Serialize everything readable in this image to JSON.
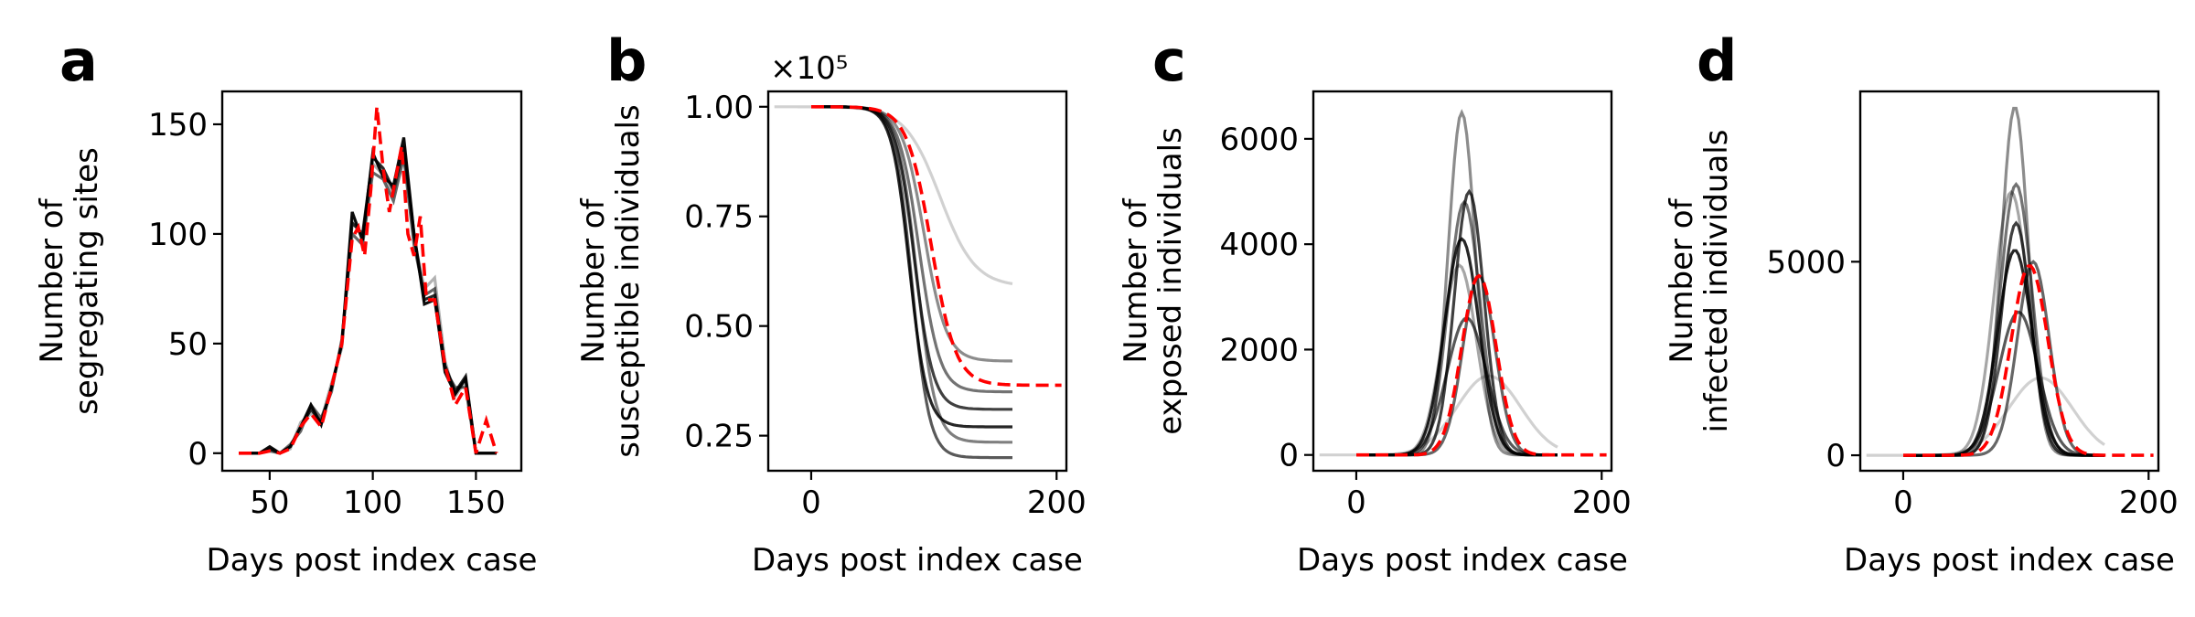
{
  "figure": {
    "xlabel": "Days post index case"
  },
  "chart_data": [
    {
      "panel": "a",
      "type": "line",
      "title": "",
      "xlabel": "Days post index case",
      "ylabel": [
        "Number of",
        "segregating sites"
      ],
      "xlim": [
        27,
        172
      ],
      "ylim": [
        -8,
        165
      ],
      "xticks": [
        50,
        100,
        150
      ],
      "yticks": [
        0,
        50,
        100,
        150
      ],
      "y_offset_label": "",
      "series_gray": [
        {
          "alpha": 0.85,
          "x": [
            35,
            45,
            50,
            55,
            60,
            65,
            70,
            75,
            80,
            85,
            90,
            95,
            100,
            105,
            110,
            115,
            120,
            125,
            130,
            135,
            140,
            145,
            150,
            155,
            160
          ],
          "y": [
            0,
            0,
            2,
            0,
            3,
            12,
            20,
            14,
            30,
            50,
            105,
            100,
            135,
            130,
            120,
            140,
            100,
            70,
            72,
            40,
            28,
            35,
            0,
            0,
            0
          ]
        },
        {
          "alpha": 0.6,
          "x": [
            35,
            45,
            50,
            55,
            60,
            65,
            70,
            75,
            80,
            85,
            90,
            95,
            100,
            105,
            110,
            115,
            120,
            125,
            130,
            135,
            140,
            145,
            150,
            155,
            160
          ],
          "y": [
            0,
            0,
            1,
            0,
            4,
            10,
            22,
            16,
            28,
            52,
            100,
            95,
            128,
            125,
            115,
            135,
            95,
            72,
            75,
            38,
            30,
            30,
            0,
            0,
            0
          ]
        },
        {
          "alpha": 0.3,
          "x": [
            35,
            45,
            50,
            55,
            60,
            65,
            70,
            75,
            80,
            85,
            90,
            95,
            100,
            105,
            110,
            115,
            120,
            125,
            130,
            135,
            140,
            145,
            150,
            155,
            160
          ],
          "y": [
            0,
            0,
            2,
            0,
            2,
            14,
            18,
            15,
            32,
            48,
            108,
            98,
            132,
            127,
            118,
            138,
            98,
            75,
            80,
            42,
            26,
            33,
            0,
            0,
            0
          ]
        },
        {
          "alpha": 0.95,
          "x": [
            35,
            45,
            50,
            55,
            60,
            65,
            70,
            75,
            80,
            85,
            90,
            95,
            100,
            105,
            110,
            115,
            120,
            125,
            130,
            135,
            140,
            145,
            150,
            155,
            160
          ],
          "y": [
            0,
            0,
            3,
            0,
            3,
            12,
            22,
            13,
            30,
            50,
            110,
            97,
            137,
            126,
            122,
            144,
            100,
            68,
            70,
            37,
            27,
            34,
            0,
            0,
            0
          ]
        }
      ],
      "series_red": {
        "x": [
          35,
          45,
          50,
          55,
          60,
          65,
          70,
          75,
          80,
          85,
          90,
          93,
          96,
          99,
          102,
          105,
          108,
          111,
          114,
          117,
          120,
          123,
          126,
          130,
          135,
          140,
          145,
          150,
          155,
          160
        ],
        "y": [
          0,
          0,
          1,
          0,
          2,
          12,
          18,
          12,
          30,
          50,
          98,
          103,
          90,
          120,
          158,
          130,
          110,
          125,
          140,
          100,
          90,
          108,
          70,
          70,
          40,
          22,
          30,
          0,
          15,
          0
        ]
      }
    },
    {
      "panel": "b",
      "type": "line",
      "title": "",
      "xlabel": "Days post index case",
      "ylabel": [
        "Number of",
        "susceptible individuals"
      ],
      "xlim": [
        -35,
        208
      ],
      "ylim": [
        0.17,
        1.035
      ],
      "xticks": [
        0,
        200
      ],
      "yticks": [
        0.25,
        0.5,
        0.75,
        1.0
      ],
      "ytick_labels": [
        "0.25",
        "0.50",
        "0.75",
        "1.00"
      ],
      "y_offset_label": "×10⁵",
      "sigmoid_series": [
        {
          "alpha": 0.18,
          "start": -30,
          "end": 165,
          "final": 0.59,
          "mid": 105,
          "k": 0.07
        },
        {
          "alpha": 0.45,
          "start": 0,
          "end": 165,
          "final": 0.42,
          "mid": 92,
          "k": 0.11
        },
        {
          "alpha": 0.55,
          "start": 0,
          "end": 165,
          "final": 0.35,
          "mid": 88,
          "k": 0.12
        },
        {
          "alpha": 0.75,
          "start": 0,
          "end": 165,
          "final": 0.31,
          "mid": 84,
          "k": 0.13
        },
        {
          "alpha": 0.85,
          "start": 0,
          "end": 165,
          "final": 0.27,
          "mid": 80,
          "k": 0.14
        },
        {
          "alpha": 0.5,
          "start": 0,
          "end": 165,
          "final": 0.235,
          "mid": 86,
          "k": 0.13
        },
        {
          "alpha": 0.65,
          "start": 0,
          "end": 165,
          "final": 0.2,
          "mid": 82,
          "k": 0.14
        }
      ],
      "red_sigmoid": {
        "start": 0,
        "end": 205,
        "final": 0.365,
        "mid": 98,
        "k": 0.1
      }
    },
    {
      "panel": "c",
      "type": "line",
      "title": "",
      "xlabel": "Days post index case",
      "ylabel": [
        "Number of",
        "exposed individuals"
      ],
      "xlim": [
        -35,
        208
      ],
      "ylim": [
        -300,
        6900
      ],
      "xticks": [
        0,
        200
      ],
      "yticks": [
        0,
        2000,
        4000,
        6000
      ],
      "y_offset_label": "",
      "peak_series": [
        {
          "alpha": 0.18,
          "start": -30,
          "end": 165,
          "peak": 1500,
          "center": 108,
          "width": 26
        },
        {
          "alpha": 0.45,
          "start": 0,
          "end": 165,
          "peak": 6500,
          "center": 86,
          "width": 11
        },
        {
          "alpha": 0.55,
          "start": 0,
          "end": 165,
          "peak": 4800,
          "center": 88,
          "width": 13
        },
        {
          "alpha": 0.75,
          "start": 0,
          "end": 165,
          "peak": 5000,
          "center": 92,
          "width": 12
        },
        {
          "alpha": 0.85,
          "start": 0,
          "end": 165,
          "peak": 4100,
          "center": 86,
          "width": 14
        },
        {
          "alpha": 0.6,
          "start": 0,
          "end": 165,
          "peak": 3400,
          "center": 100,
          "width": 13
        },
        {
          "alpha": 0.65,
          "start": 0,
          "end": 165,
          "peak": 2600,
          "center": 90,
          "width": 16
        },
        {
          "alpha": 0.35,
          "start": 0,
          "end": 165,
          "peak": 3600,
          "center": 84,
          "width": 14
        }
      ],
      "red_peak": {
        "start": 0,
        "end": 205,
        "peak": 3400,
        "center": 100,
        "width": 14
      }
    },
    {
      "panel": "d",
      "type": "line",
      "title": "",
      "xlabel": "Days post index case",
      "ylabel": [
        "Number of",
        "infected individuals"
      ],
      "xlim": [
        -35,
        208
      ],
      "ylim": [
        -400,
        9400
      ],
      "xticks": [
        0,
        200
      ],
      "yticks": [
        0,
        5000
      ],
      "y_offset_label": "",
      "peak_series": [
        {
          "alpha": 0.18,
          "start": -30,
          "end": 165,
          "peak": 2000,
          "center": 112,
          "width": 26
        },
        {
          "alpha": 0.45,
          "start": 0,
          "end": 165,
          "peak": 9000,
          "center": 91,
          "width": 11
        },
        {
          "alpha": 0.55,
          "start": 0,
          "end": 165,
          "peak": 7000,
          "center": 92,
          "width": 13
        },
        {
          "alpha": 0.75,
          "start": 0,
          "end": 165,
          "peak": 6000,
          "center": 92,
          "width": 12
        },
        {
          "alpha": 0.85,
          "start": 0,
          "end": 165,
          "peak": 5300,
          "center": 91,
          "width": 14
        },
        {
          "alpha": 0.6,
          "start": 0,
          "end": 165,
          "peak": 5000,
          "center": 106,
          "width": 13
        },
        {
          "alpha": 0.65,
          "start": 0,
          "end": 165,
          "peak": 3700,
          "center": 94,
          "width": 16
        },
        {
          "alpha": 0.35,
          "start": 0,
          "end": 165,
          "peak": 6800,
          "center": 88,
          "width": 14
        }
      ],
      "red_peak": {
        "start": 0,
        "end": 205,
        "peak": 4900,
        "center": 103,
        "width": 15
      }
    }
  ]
}
